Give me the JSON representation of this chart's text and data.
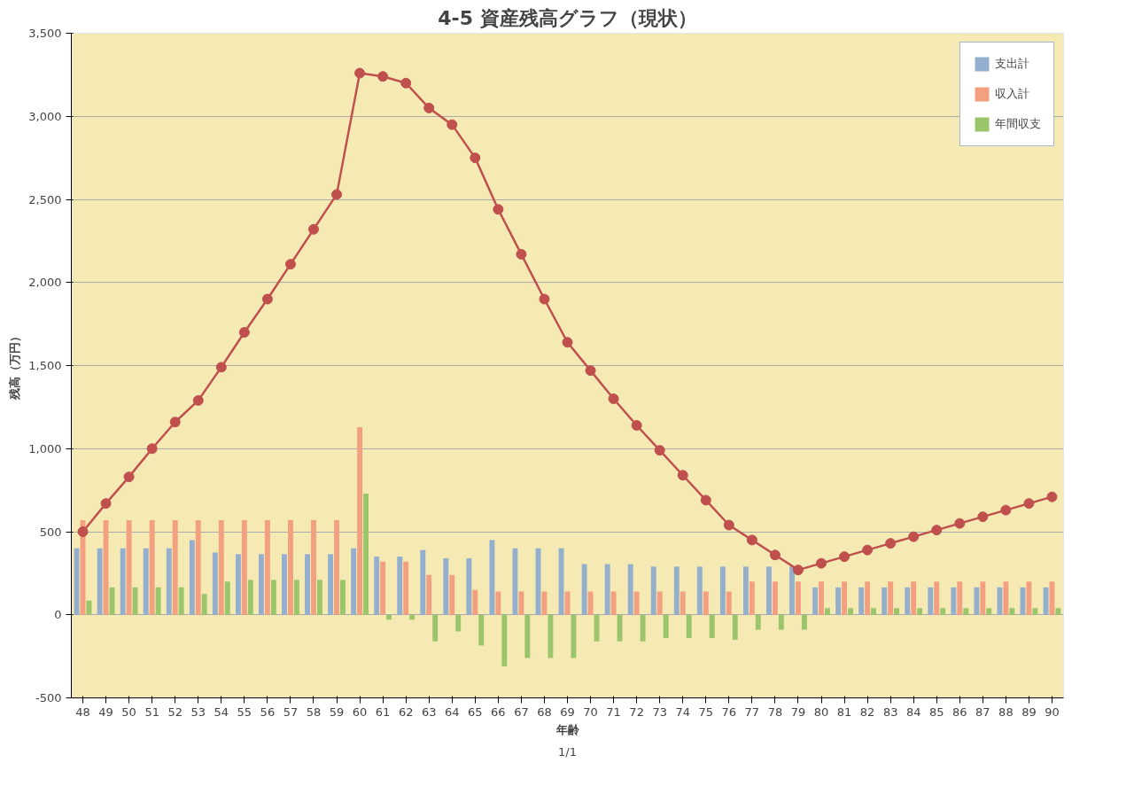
{
  "chart_data": {
    "type": "bar",
    "title": "4-5 資産残高グラフ（現状）",
    "xlabel": "年齢",
    "ylabel": "残高（万円）",
    "categories": [
      "48",
      "49",
      "50",
      "51",
      "52",
      "53",
      "54",
      "55",
      "56",
      "57",
      "58",
      "59",
      "60",
      "61",
      "62",
      "63",
      "64",
      "65",
      "66",
      "67",
      "68",
      "69",
      "70",
      "71",
      "72",
      "73",
      "74",
      "75",
      "76",
      "77",
      "78",
      "79",
      "80",
      "81",
      "82",
      "83",
      "84",
      "85",
      "86",
      "87",
      "88",
      "89",
      "90"
    ],
    "series": [
      {
        "name": "支出計",
        "color": "#94aecd",
        "values": [
          400,
          400,
          400,
          400,
          400,
          450,
          375,
          365,
          365,
          365,
          365,
          365,
          400,
          350,
          350,
          390,
          340,
          340,
          450,
          400,
          400,
          400,
          305,
          305,
          305,
          290,
          290,
          290,
          290,
          290,
          290,
          290,
          165,
          165,
          165,
          165,
          165,
          165,
          165,
          165,
          165,
          165,
          165
        ]
      },
      {
        "name": "収入計",
        "color": "#f2a07f",
        "values": [
          570,
          570,
          570,
          570,
          570,
          570,
          570,
          570,
          570,
          570,
          570,
          570,
          1130,
          320,
          320,
          240,
          240,
          150,
          140,
          140,
          140,
          140,
          140,
          140,
          140,
          140,
          140,
          140,
          140,
          200,
          200,
          200,
          200,
          200,
          200,
          200,
          200,
          200,
          200,
          200,
          200,
          200,
          200
        ]
      },
      {
        "name": "年間収支",
        "color": "#9bc56a",
        "values": [
          85,
          165,
          165,
          165,
          165,
          125,
          200,
          210,
          210,
          210,
          210,
          210,
          730,
          -30,
          -30,
          -160,
          -100,
          -185,
          -310,
          -260,
          -260,
          -260,
          -160,
          -160,
          -160,
          -140,
          -140,
          -140,
          -150,
          -90,
          -90,
          -90,
          40,
          40,
          40,
          40,
          40,
          40,
          40,
          40,
          40,
          40,
          40
        ]
      },
      {
        "type": "line",
        "color": "#c0504d",
        "marker": "circle",
        "values": [
          500,
          670,
          830,
          1000,
          1160,
          1290,
          1490,
          1700,
          1900,
          2110,
          2320,
          2530,
          3260,
          3240,
          3200,
          3050,
          2950,
          2750,
          2440,
          2170,
          1900,
          1640,
          1470,
          1300,
          1140,
          990,
          840,
          690,
          540,
          450,
          360,
          270,
          310,
          350,
          390,
          430,
          470,
          510,
          550,
          590,
          630,
          670,
          710
        ]
      }
    ],
    "ylim": [
      -500,
      3500
    ],
    "yticks": [
      {
        "value": -500,
        "label": "-500"
      },
      {
        "value": 0,
        "label": "0"
      },
      {
        "value": 500,
        "label": "500"
      },
      {
        "value": 1000,
        "label": "1,000"
      },
      {
        "value": 1500,
        "label": "1,500"
      },
      {
        "value": 2000,
        "label": "2,000"
      },
      {
        "value": 2500,
        "label": "2,500"
      },
      {
        "value": 3000,
        "label": "3,000"
      },
      {
        "value": 3500,
        "label": "3,500"
      }
    ],
    "grid": "y",
    "legend": "top right",
    "annotations": [
      "1/1"
    ]
  }
}
